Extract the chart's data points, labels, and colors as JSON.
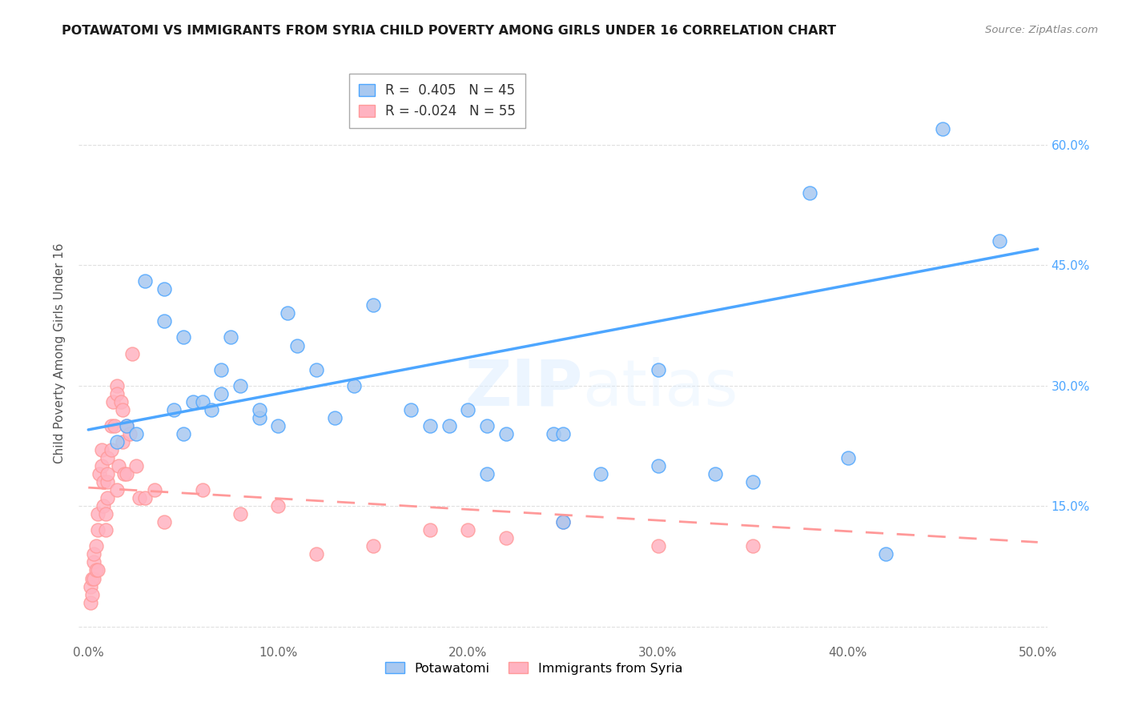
{
  "title": "POTAWATOMI VS IMMIGRANTS FROM SYRIA CHILD POVERTY AMONG GIRLS UNDER 16 CORRELATION CHART",
  "source": "Source: ZipAtlas.com",
  "ylabel": "Child Poverty Among Girls Under 16",
  "watermark": "ZIPatlas",
  "xlim": [
    -0.005,
    0.505
  ],
  "ylim": [
    -0.02,
    0.7
  ],
  "xticks": [
    0.0,
    0.1,
    0.2,
    0.3,
    0.4,
    0.5
  ],
  "yticks": [
    0.0,
    0.15,
    0.3,
    0.45,
    0.6
  ],
  "xticklabels": [
    "0.0%",
    "10.0%",
    "20.0%",
    "30.0%",
    "40.0%",
    "50.0%"
  ],
  "yticklabels_right": [
    "",
    "15.0%",
    "30.0%",
    "45.0%",
    "60.0%"
  ],
  "blue_color": "#4da6ff",
  "pink_color": "#ff9999",
  "blue_scatter_color": "#a8c8f0",
  "pink_scatter_color": "#ffb3c1",
  "grid_color": "#e0e0e0",
  "background_color": "#ffffff",
  "potawatomi_x": [
    0.015,
    0.02,
    0.025,
    0.03,
    0.04,
    0.04,
    0.045,
    0.05,
    0.05,
    0.055,
    0.06,
    0.065,
    0.07,
    0.07,
    0.075,
    0.08,
    0.09,
    0.09,
    0.1,
    0.105,
    0.11,
    0.12,
    0.13,
    0.14,
    0.15,
    0.17,
    0.18,
    0.19,
    0.2,
    0.21,
    0.21,
    0.22,
    0.245,
    0.25,
    0.25,
    0.27,
    0.3,
    0.3,
    0.33,
    0.35,
    0.38,
    0.4,
    0.42,
    0.45,
    0.48
  ],
  "potawatomi_y": [
    0.23,
    0.25,
    0.24,
    0.43,
    0.38,
    0.42,
    0.27,
    0.24,
    0.36,
    0.28,
    0.28,
    0.27,
    0.32,
    0.29,
    0.36,
    0.3,
    0.26,
    0.27,
    0.25,
    0.39,
    0.35,
    0.32,
    0.26,
    0.3,
    0.4,
    0.27,
    0.25,
    0.25,
    0.27,
    0.25,
    0.19,
    0.24,
    0.24,
    0.24,
    0.13,
    0.19,
    0.2,
    0.32,
    0.19,
    0.18,
    0.54,
    0.21,
    0.09,
    0.62,
    0.48
  ],
  "syria_x": [
    0.001,
    0.001,
    0.002,
    0.002,
    0.003,
    0.003,
    0.003,
    0.004,
    0.004,
    0.005,
    0.005,
    0.005,
    0.006,
    0.007,
    0.007,
    0.008,
    0.008,
    0.009,
    0.009,
    0.01,
    0.01,
    0.01,
    0.01,
    0.012,
    0.012,
    0.013,
    0.014,
    0.015,
    0.015,
    0.015,
    0.016,
    0.017,
    0.018,
    0.018,
    0.019,
    0.02,
    0.02,
    0.022,
    0.023,
    0.025,
    0.027,
    0.03,
    0.035,
    0.04,
    0.06,
    0.08,
    0.1,
    0.12,
    0.15,
    0.18,
    0.2,
    0.22,
    0.25,
    0.3,
    0.35
  ],
  "syria_y": [
    0.05,
    0.03,
    0.06,
    0.04,
    0.08,
    0.09,
    0.06,
    0.1,
    0.07,
    0.14,
    0.12,
    0.07,
    0.19,
    0.2,
    0.22,
    0.15,
    0.18,
    0.12,
    0.14,
    0.18,
    0.19,
    0.21,
    0.16,
    0.25,
    0.22,
    0.28,
    0.25,
    0.3,
    0.29,
    0.17,
    0.2,
    0.28,
    0.27,
    0.23,
    0.19,
    0.25,
    0.19,
    0.24,
    0.34,
    0.2,
    0.16,
    0.16,
    0.17,
    0.13,
    0.17,
    0.14,
    0.15,
    0.09,
    0.1,
    0.12,
    0.12,
    0.11,
    0.13,
    0.1,
    0.1
  ],
  "pot_line_x0": 0.0,
  "pot_line_y0": 0.245,
  "pot_line_x1": 0.5,
  "pot_line_y1": 0.47,
  "syr_line_x0": 0.0,
  "syr_line_y0": 0.173,
  "syr_line_x1": 0.5,
  "syr_line_y1": 0.105
}
